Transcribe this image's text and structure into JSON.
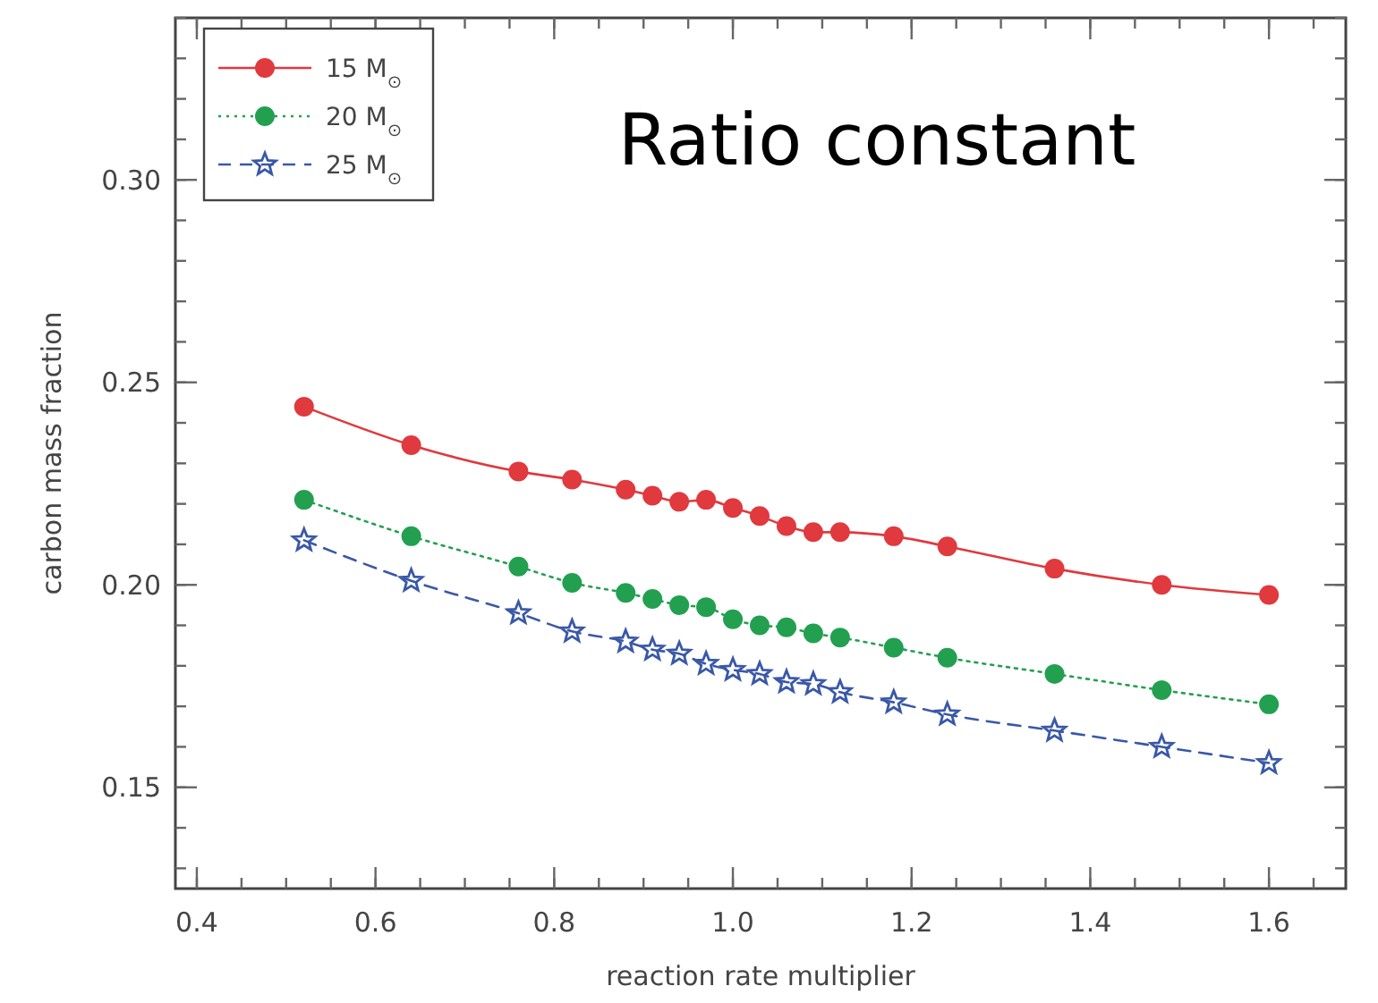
{
  "chart_data": {
    "type": "line",
    "title": "Ratio constant",
    "xlabel": "reaction rate multiplier",
    "ylabel": "carbon mass fraction",
    "x": [
      0.52,
      0.64,
      0.76,
      0.82,
      0.88,
      0.91,
      0.94,
      0.97,
      1.0,
      1.03,
      1.06,
      1.09,
      1.12,
      1.18,
      1.24,
      1.36,
      1.48,
      1.6
    ],
    "series": [
      {
        "name": "15 M$_{⊙}$",
        "color": "#e0393e",
        "marker": "circle",
        "line_style": "solid",
        "values": [
          0.244,
          0.2345,
          0.228,
          0.226,
          0.2235,
          0.222,
          0.2205,
          0.221,
          0.219,
          0.217,
          0.2145,
          0.213,
          0.213,
          0.212,
          0.2095,
          0.204,
          0.2,
          0.1975
        ]
      },
      {
        "name": "20 M$_{⊙}$",
        "color": "#22a050",
        "marker": "circle",
        "line_style": "dotted",
        "values": [
          0.221,
          0.212,
          0.2045,
          0.2005,
          0.198,
          0.1965,
          0.195,
          0.1945,
          0.1915,
          0.19,
          0.1895,
          0.188,
          0.187,
          0.1845,
          0.182,
          0.178,
          0.174,
          0.1705
        ]
      },
      {
        "name": "25 M$_{⊙}$",
        "color": "#3a58a8",
        "marker": "star",
        "line_style": "dashed",
        "values": [
          0.211,
          0.201,
          0.193,
          0.1885,
          0.186,
          0.184,
          0.183,
          0.1805,
          0.179,
          0.178,
          0.176,
          0.1755,
          0.1735,
          0.171,
          0.168,
          0.164,
          0.16,
          0.156
        ]
      }
    ],
    "xlim": [
      0.376,
      1.686
    ],
    "ylim": [
      0.125,
      0.34
    ],
    "xticks": [
      {
        "value": 0.4,
        "label": "0.4"
      },
      {
        "value": 0.6,
        "label": "0.6"
      },
      {
        "value": 0.8,
        "label": "0.8"
      },
      {
        "value": 1,
        "label": "1.0"
      },
      {
        "value": 1.2,
        "label": "1.2"
      },
      {
        "value": 1.4,
        "label": "1.4"
      },
      {
        "value": 1.6,
        "label": "1.6"
      }
    ],
    "yticks": [
      {
        "value": 0.15,
        "label": "0.15"
      },
      {
        "value": 0.2,
        "label": "0.20"
      },
      {
        "value": 0.25,
        "label": "0.25"
      },
      {
        "value": 0.3,
        "label": "0.30"
      }
    ],
    "grid": false,
    "legend": "top left"
  }
}
